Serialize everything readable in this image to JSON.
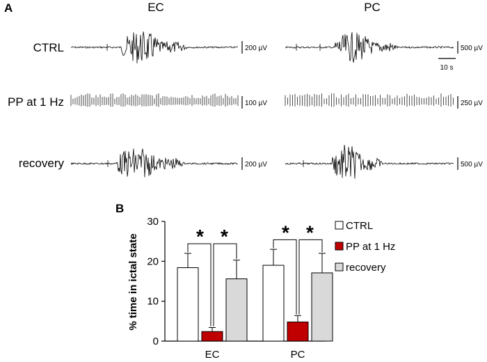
{
  "panel_a": {
    "letter": "A",
    "columns": [
      "EC",
      "PC"
    ],
    "rows": [
      {
        "label": "CTRL",
        "ec_scale": "200 µV",
        "pc_scale": "500 µV"
      },
      {
        "label": "PP at 1 Hz",
        "ec_scale": "100 µV",
        "pc_scale": "250 µV"
      },
      {
        "label": "recovery",
        "ec_scale": "200 µV",
        "pc_scale": "500 µV"
      }
    ],
    "time_scale": "10 s"
  },
  "panel_b": {
    "letter": "B"
  },
  "chart_data": {
    "type": "bar",
    "categories": [
      "EC",
      "PC"
    ],
    "series": [
      {
        "name": "CTRL",
        "values": [
          18.4,
          19.0
        ],
        "errors": [
          3.6,
          4.0
        ],
        "color": "#ffffff"
      },
      {
        "name": "PP at 1 Hz",
        "values": [
          2.4,
          4.8
        ],
        "errors": [
          1.0,
          1.6
        ],
        "color": "#c00000"
      },
      {
        "name": "recovery",
        "values": [
          15.6,
          17.1
        ],
        "errors": [
          4.7,
          4.9
        ],
        "color": "#d9d9d9"
      }
    ],
    "ylabel": "% time in ictal state",
    "ylim": [
      0,
      30
    ],
    "yticks": [
      0,
      10,
      20,
      30
    ],
    "legend_position": "right",
    "significance_marker": "*"
  }
}
